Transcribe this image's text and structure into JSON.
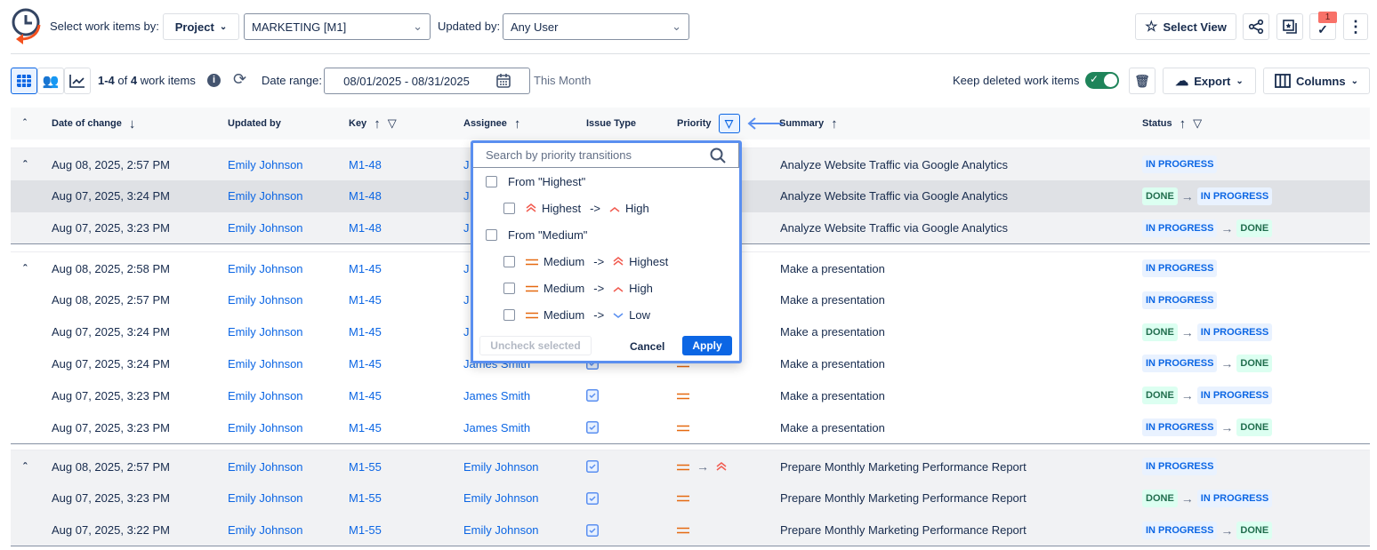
{
  "toolbar": {
    "select_by_label": "Select work items by:",
    "select_by_value": "Project",
    "project_value": "MARKETING [M1]",
    "updated_by_label": "Updated by:",
    "updated_by_value": "Any User",
    "select_view": "Select View",
    "notification_count": "1"
  },
  "subbar": {
    "count_prefix": "1-4",
    "count_of": "of",
    "count_total": "4",
    "count_suffix": "work items",
    "date_range_label": "Date range:",
    "date_range_value": "08/01/2025 - 08/31/2025",
    "preset": "This Month",
    "keep_deleted": "Keep deleted work items",
    "keep_deleted_on": true,
    "export": "Export",
    "columns": "Columns"
  },
  "columns": [
    "Date of change",
    "Updated by",
    "Key",
    "Assignee",
    "Issue Type",
    "Priority",
    "Summary",
    "Status"
  ],
  "colors": {
    "accent": "#0c66e4",
    "in_progress_bg": "#e9f2ff",
    "done_bg": "#dcfff1",
    "toggle": "#1f845a"
  },
  "groups": [
    {
      "rows": [
        {
          "date": "Aug 08, 2025, 2:57 PM",
          "updated_by": "Emily Johnson",
          "key": "M1-48",
          "assignee": "J",
          "issue_type": "task",
          "priority": [],
          "summary": "Analyze Website Traffic via Google Analytics",
          "status": [
            "IN PROGRESS"
          ]
        },
        {
          "date": "Aug 07, 2025, 3:24 PM",
          "updated_by": "Emily Johnson",
          "key": "M1-48",
          "assignee": "J",
          "issue_type": "task",
          "priority": [],
          "summary": "Analyze Website Traffic via Google Analytics",
          "status": [
            "DONE",
            "IN PROGRESS"
          ]
        },
        {
          "date": "Aug 07, 2025, 3:23 PM",
          "updated_by": "Emily Johnson",
          "key": "M1-48",
          "assignee": "J",
          "issue_type": "task",
          "priority": [],
          "summary": "Analyze Website Traffic via Google Analytics",
          "status": [
            "IN PROGRESS",
            "DONE"
          ]
        }
      ]
    },
    {
      "rows": [
        {
          "date": "Aug 08, 2025, 2:58 PM",
          "updated_by": "Emily Johnson",
          "key": "M1-45",
          "assignee": "J",
          "issue_type": "task",
          "priority": [],
          "summary": "Make a presentation",
          "status": [
            "IN PROGRESS"
          ]
        },
        {
          "date": "Aug 08, 2025, 2:57 PM",
          "updated_by": "Emily Johnson",
          "key": "M1-45",
          "assignee": "J",
          "issue_type": "task",
          "priority": [],
          "summary": "Make a presentation",
          "status": [
            "IN PROGRESS"
          ]
        },
        {
          "date": "Aug 07, 2025, 3:24 PM",
          "updated_by": "Emily Johnson",
          "key": "M1-45",
          "assignee": "J",
          "issue_type": "task",
          "priority": [],
          "summary": "Make a presentation",
          "status": [
            "DONE",
            "IN PROGRESS"
          ]
        },
        {
          "date": "Aug 07, 2025, 3:24 PM",
          "updated_by": "Emily Johnson",
          "key": "M1-45",
          "assignee": "James Smith",
          "issue_type": "task",
          "priority": [
            "medium"
          ],
          "summary": "Make a presentation",
          "status": [
            "IN PROGRESS",
            "DONE"
          ]
        },
        {
          "date": "Aug 07, 2025, 3:23 PM",
          "updated_by": "Emily Johnson",
          "key": "M1-45",
          "assignee": "James Smith",
          "issue_type": "task",
          "priority": [
            "medium"
          ],
          "summary": "Make a presentation",
          "status": [
            "DONE",
            "IN PROGRESS"
          ]
        },
        {
          "date": "Aug 07, 2025, 3:23 PM",
          "updated_by": "Emily Johnson",
          "key": "M1-45",
          "assignee": "James Smith",
          "issue_type": "task",
          "priority": [
            "medium"
          ],
          "summary": "Make a presentation",
          "status": [
            "IN PROGRESS",
            "DONE"
          ]
        }
      ]
    },
    {
      "rows": [
        {
          "date": "Aug 08, 2025, 2:57 PM",
          "updated_by": "Emily Johnson",
          "key": "M1-55",
          "assignee": "Emily Johnson",
          "issue_type": "task",
          "priority": [
            "medium",
            "highest"
          ],
          "summary": "Prepare Monthly Marketing Performance Report",
          "status": [
            "IN PROGRESS"
          ]
        },
        {
          "date": "Aug 07, 2025, 3:23 PM",
          "updated_by": "Emily Johnson",
          "key": "M1-55",
          "assignee": "Emily Johnson",
          "issue_type": "task",
          "priority": [
            "medium"
          ],
          "summary": "Prepare Monthly Marketing Performance Report",
          "status": [
            "DONE",
            "IN PROGRESS"
          ]
        },
        {
          "date": "Aug 07, 2025, 3:22 PM",
          "updated_by": "Emily Johnson",
          "key": "M1-55",
          "assignee": "Emily Johnson",
          "issue_type": "task",
          "priority": [
            "medium"
          ],
          "summary": "Prepare Monthly Marketing Performance Report",
          "status": [
            "IN PROGRESS",
            "DONE"
          ]
        }
      ]
    }
  ],
  "popup": {
    "search_placeholder": "Search by priority transitions",
    "items": [
      {
        "label": "From \"Highest\"",
        "level": 0
      },
      {
        "from": "Highest",
        "to": "High",
        "from_icon": "highest",
        "to_icon": "high",
        "level": 1
      },
      {
        "label": "From \"Medium\"",
        "level": 0
      },
      {
        "from": "Medium",
        "to": "Highest",
        "from_icon": "medium",
        "to_icon": "highest",
        "level": 1
      },
      {
        "from": "Medium",
        "to": "High",
        "from_icon": "medium",
        "to_icon": "high",
        "level": 1
      },
      {
        "from": "Medium",
        "to": "Low",
        "from_icon": "medium",
        "to_icon": "low",
        "level": 1
      }
    ],
    "arrow_text": "->",
    "uncheck": "Uncheck selected",
    "cancel": "Cancel",
    "apply": "Apply"
  }
}
